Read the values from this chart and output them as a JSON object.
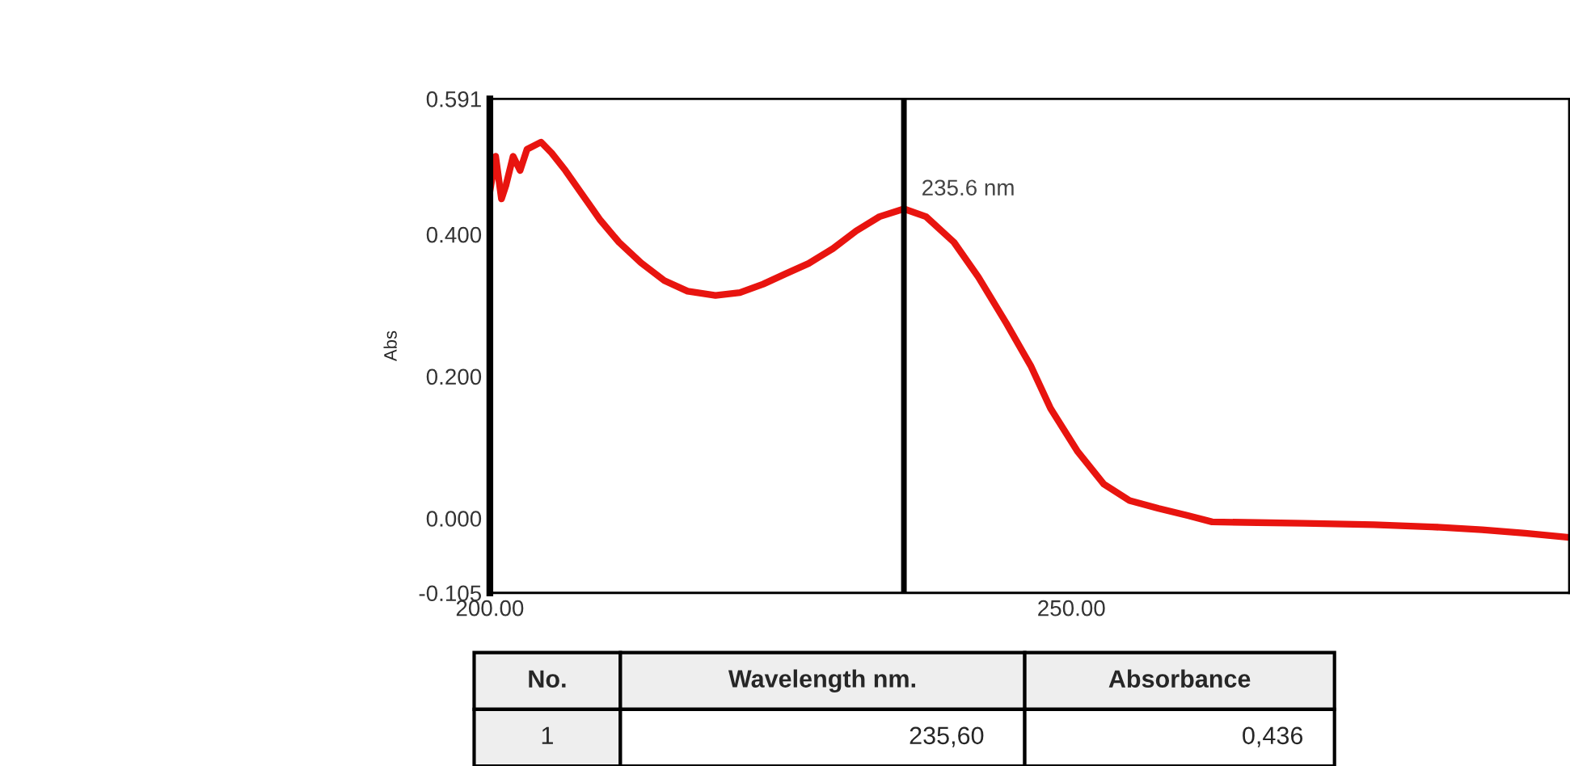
{
  "chart_data": {
    "type": "line",
    "ylabel": "Abs",
    "x": [
      200.0,
      200.5,
      201.0,
      201.4,
      202.0,
      202.6,
      203.2,
      204.4,
      205.3,
      206.5,
      208.0,
      209.5,
      211.1,
      213.0,
      215.0,
      217.0,
      219.4,
      221.5,
      223.5,
      225.5,
      227.4,
      229.5,
      231.5,
      233.5,
      235.6,
      237.5,
      239.9,
      242.0,
      244.4,
      246.5,
      248.2,
      250.5,
      252.8,
      255.0,
      257.5,
      260.0,
      262.1,
      266.0,
      270.0,
      276.0,
      281.0,
      285.3,
      289.0,
      292.8
    ],
    "series": [
      {
        "color": "#e8140f",
        "values": [
          0.46,
          0.51,
          0.45,
          0.47,
          0.51,
          0.49,
          0.52,
          0.53,
          0.515,
          0.49,
          0.455,
          0.42,
          0.389,
          0.36,
          0.335,
          0.32,
          0.314,
          0.318,
          0.33,
          0.345,
          0.359,
          0.38,
          0.405,
          0.425,
          0.436,
          0.425,
          0.389,
          0.34,
          0.275,
          0.215,
          0.155,
          0.095,
          0.048,
          0.025,
          0.014,
          0.004,
          -0.005,
          -0.006,
          -0.007,
          -0.009,
          -0.012,
          -0.016,
          -0.021,
          -0.027
        ]
      }
    ],
    "xlim": [
      200.0,
      292.8
    ],
    "xticks": [
      {
        "value": 200,
        "label": "200.00"
      },
      {
        "value": 250,
        "label": "250.00"
      }
    ],
    "ylim": [
      -0.105,
      0.591
    ],
    "yticks": [
      {
        "value": -0.105,
        "label": "-0.105"
      },
      {
        "value": 0.0,
        "label": "0.000"
      },
      {
        "value": 0.2,
        "label": "0.200"
      },
      {
        "value": 0.4,
        "label": "0.400"
      },
      {
        "value": 0.591,
        "label": "0.591"
      }
    ],
    "ref_lines": [
      {
        "axis": "x",
        "value": 235.6,
        "label": "235.6 nm",
        "color": "#000000"
      }
    ],
    "grid": false,
    "legend": false,
    "marker": "none",
    "line_style": "solid",
    "annotations": [
      "No.",
      "Wavelength nm.",
      "Absorbance",
      "1",
      "235,60",
      "0,436"
    ]
  }
}
